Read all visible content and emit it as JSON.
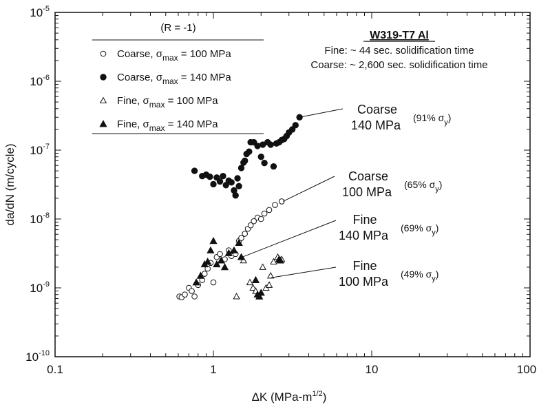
{
  "chart_data": {
    "type": "scatter",
    "title": "",
    "xlabel": "ΔK (MPa-m",
    "xlabel_sup": "1/2",
    "xlabel_end": ")",
    "ylabel": "da/dN (m/cycle)",
    "x_scale": "log",
    "y_scale": "log",
    "xlim": [
      0.1,
      100
    ],
    "ylim": [
      1e-10,
      1e-05
    ],
    "grid": false,
    "legend_position": "top-left",
    "x_ticks": [
      {
        "value": 0.1,
        "label": "0.1"
      },
      {
        "value": 1,
        "label": "1"
      },
      {
        "value": 10,
        "label": "10"
      },
      {
        "value": 100,
        "label": "100"
      }
    ],
    "y_ticks": [
      {
        "value": 1e-10,
        "base": "10",
        "exp": "-10"
      },
      {
        "value": 1e-09,
        "base": "10",
        "exp": "-9"
      },
      {
        "value": 1e-08,
        "base": "10",
        "exp": "-8"
      },
      {
        "value": 1e-07,
        "base": "10",
        "exp": "-7"
      },
      {
        "value": 1e-06,
        "base": "10",
        "exp": "-6"
      },
      {
        "value": 1e-05,
        "base": "10",
        "exp": "-5"
      }
    ],
    "legend_header": "(R = -1)",
    "series": [
      {
        "legend_pre": "Coarse, σ",
        "legend_sub": "max",
        "legend_post": " = 100 MPa",
        "marker": "circle-open",
        "points": [
          [
            0.61,
            7.5e-10
          ],
          [
            0.63,
            7.3e-10
          ],
          [
            0.66,
            8e-10
          ],
          [
            0.7,
            1e-09
          ],
          [
            0.73,
            9e-10
          ],
          [
            0.76,
            7.5e-10
          ],
          [
            0.8,
            1.1e-09
          ],
          [
            0.85,
            1.3e-09
          ],
          [
            0.88,
            1.6e-09
          ],
          [
            0.92,
            1.9e-09
          ],
          [
            0.96,
            2.3e-09
          ],
          [
            1.0,
            1.2e-09
          ],
          [
            1.05,
            2.8e-09
          ],
          [
            1.1,
            3.1e-09
          ],
          [
            1.18,
            2.6e-09
          ],
          [
            1.25,
            3.5e-09
          ],
          [
            1.3,
            2.9e-09
          ],
          [
            1.38,
            3.1e-09
          ],
          [
            1.45,
            4.8e-09
          ],
          [
            1.5,
            5.3e-09
          ],
          [
            1.58,
            6.1e-09
          ],
          [
            1.65,
            7.2e-09
          ],
          [
            1.72,
            8.1e-09
          ],
          [
            1.8,
            9.3e-09
          ],
          [
            1.9,
            1.05e-08
          ],
          [
            2.0,
            1e-08
          ],
          [
            2.1,
            1.2e-08
          ],
          [
            2.25,
            1.35e-08
          ],
          [
            2.45,
            1.6e-08
          ],
          [
            2.7,
            1.8e-08
          ]
        ]
      },
      {
        "legend_pre": "Coarse, σ",
        "legend_sub": "max",
        "legend_post": " = 140 MPa",
        "marker": "circle-filled",
        "points": [
          [
            0.76,
            5e-08
          ],
          [
            0.85,
            4.2e-08
          ],
          [
            0.9,
            4.4e-08
          ],
          [
            0.95,
            4.1e-08
          ],
          [
            1.0,
            3.2e-08
          ],
          [
            1.05,
            4e-08
          ],
          [
            1.1,
            3.5e-08
          ],
          [
            1.15,
            4.2e-08
          ],
          [
            1.2,
            3.1e-08
          ],
          [
            1.25,
            3.6e-08
          ],
          [
            1.3,
            3.4e-08
          ],
          [
            1.35,
            2.6e-08
          ],
          [
            1.38,
            2.2e-08
          ],
          [
            1.42,
            3.9e-08
          ],
          [
            1.45,
            3e-08
          ],
          [
            1.5,
            5.5e-08
          ],
          [
            1.55,
            6.6e-08
          ],
          [
            1.58,
            7e-08
          ],
          [
            1.62,
            8.8e-08
          ],
          [
            1.68,
            9.5e-08
          ],
          [
            1.72,
            1.3e-07
          ],
          [
            1.8,
            1.3e-07
          ],
          [
            1.9,
            1.15e-07
          ],
          [
            2.0,
            8e-08
          ],
          [
            2.05,
            1.2e-07
          ],
          [
            2.1,
            6.5e-08
          ],
          [
            2.2,
            1.3e-07
          ],
          [
            2.3,
            1.2e-07
          ],
          [
            2.4,
            5.8e-08
          ],
          [
            2.5,
            1.25e-07
          ],
          [
            2.6,
            1.3e-07
          ],
          [
            2.7,
            1.4e-07
          ],
          [
            2.8,
            1.45e-07
          ],
          [
            2.9,
            1.6e-07
          ],
          [
            3.0,
            1.8e-07
          ],
          [
            3.15,
            2e-07
          ],
          [
            3.3,
            2.3e-07
          ],
          [
            3.5,
            3e-07
          ]
        ]
      },
      {
        "legend_pre": "Fine, σ",
        "legend_sub": "max",
        "legend_post": " = 100 MPa",
        "marker": "triangle-open",
        "points": [
          [
            1.4,
            7.5e-10
          ],
          [
            1.55,
            2.5e-09
          ],
          [
            1.7,
            1.2e-09
          ],
          [
            1.78,
            1e-09
          ],
          [
            1.85,
            9e-10
          ],
          [
            1.95,
            7.5e-10
          ],
          [
            2.05,
            2e-09
          ],
          [
            2.15,
            1e-09
          ],
          [
            2.25,
            1.1e-09
          ],
          [
            2.3,
            1.5e-09
          ],
          [
            2.4,
            2.4e-09
          ],
          [
            2.55,
            2.8e-09
          ],
          [
            2.7,
            2.6e-09
          ]
        ]
      },
      {
        "legend_pre": "Fine, σ",
        "legend_sub": "max",
        "legend_post": " = 140 MPa",
        "marker": "triangle-filled",
        "points": [
          [
            0.78,
            1.2e-09
          ],
          [
            0.83,
            1.5e-09
          ],
          [
            0.88,
            2.2e-09
          ],
          [
            0.92,
            2.4e-09
          ],
          [
            0.96,
            3.5e-09
          ],
          [
            1.0,
            4.8e-09
          ],
          [
            1.05,
            2.2e-09
          ],
          [
            1.12,
            2.5e-09
          ],
          [
            1.18,
            2e-09
          ],
          [
            1.25,
            3.2e-09
          ],
          [
            1.35,
            3.5e-09
          ],
          [
            1.45,
            4.5e-09
          ],
          [
            1.5,
            2.8e-09
          ],
          [
            1.85,
            1.3e-09
          ],
          [
            1.9,
            8e-10
          ],
          [
            1.95,
            7.5e-10
          ],
          [
            2.0,
            8.5e-10
          ],
          [
            2.6,
            2.6e-09
          ],
          [
            2.65,
            2.5e-09
          ]
        ]
      }
    ],
    "annotations": {
      "material_title": "W319-T7 Al",
      "fine_note": "Fine: ~ 44 sec. solidification time",
      "coarse_note": "Coarse: ~ 2,600 sec. solidification time",
      "labels": [
        {
          "line1": "Coarse",
          "line2": "140 MPa",
          "pct": "(91% σ",
          "pct_sub": "y",
          "pct_end": ")",
          "x": 3.5,
          "y": 3e-07
        },
        {
          "line1": "Coarse",
          "line2": "100 MPa",
          "pct": "(65% σ",
          "pct_sub": "y",
          "pct_end": ")",
          "x": 2.75,
          "y": 1.8e-08
        },
        {
          "line1": "Fine",
          "line2": "140 MPa",
          "pct": "(69% σ",
          "pct_sub": "y",
          "pct_end": ")",
          "x": 1.52,
          "y": 2.8e-09
        },
        {
          "line1": "Fine",
          "line2": "100 MPa",
          "pct": "(49% σ",
          "pct_sub": "y",
          "pct_end": ")",
          "x": 2.3,
          "y": 1.4e-09
        }
      ]
    }
  }
}
